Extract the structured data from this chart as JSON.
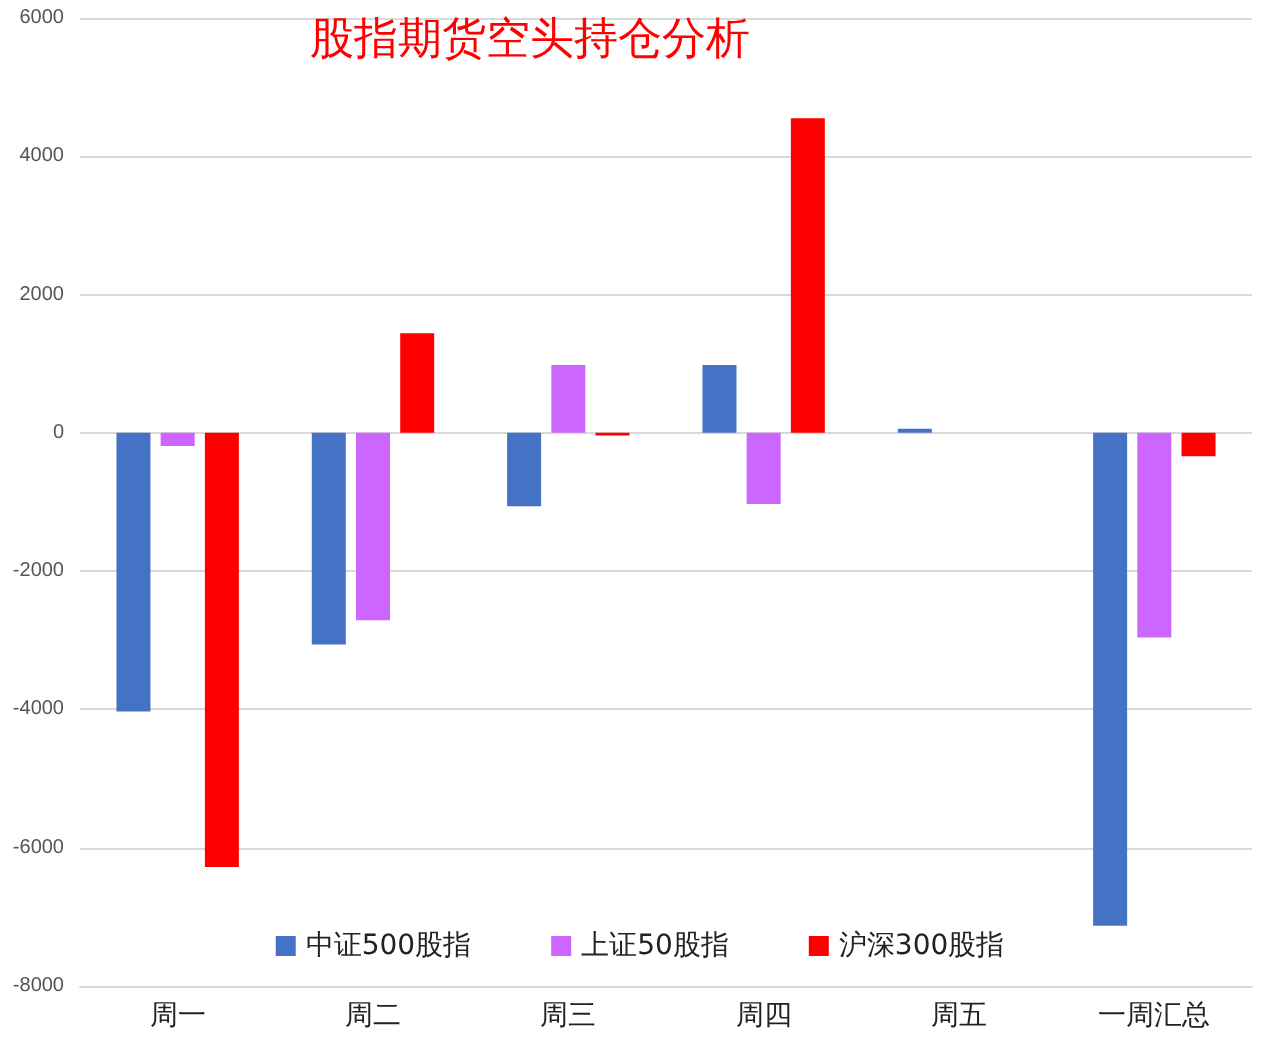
{
  "chart_data": {
    "type": "bar",
    "title": "股指期货空头持仓分析",
    "categories": [
      "周一",
      "周二",
      "周三",
      "周四",
      "周五",
      "一周汇总"
    ],
    "series": [
      {
        "name": "中证500股指",
        "color": "#4472c4",
        "values": [
          -4030,
          -3060,
          -1060,
          980,
          60,
          -7130
        ]
      },
      {
        "name": "上证50股指",
        "color": "#cc66ff",
        "values": [
          -190,
          -2710,
          980,
          -1030,
          0,
          -2960
        ]
      },
      {
        "name": "沪深300股指",
        "color": "#ff0000",
        "values": [
          -6280,
          1440,
          -40,
          4550,
          0,
          -340
        ]
      }
    ],
    "ylim": [
      -8000,
      6000
    ],
    "yticks": [
      -8000,
      -6000,
      -4000,
      -2000,
      0,
      2000,
      4000,
      6000
    ],
    "grid": "y",
    "legend": "bottom"
  }
}
